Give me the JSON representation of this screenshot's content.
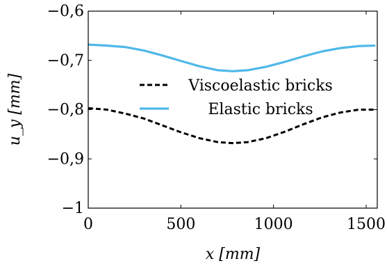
{
  "chart_data": {
    "type": "line",
    "title": "",
    "xlabel": "x [mm]",
    "ylabel": "u_y [mm]",
    "xlim": [
      0,
      1560
    ],
    "ylim": [
      -1,
      -0.6
    ],
    "xticks": [
      0,
      500,
      1000,
      1500
    ],
    "xtick_labels": [
      "0",
      "500",
      "1000",
      "1500"
    ],
    "yticks": [
      -1,
      -0.9,
      -0.8,
      -0.7,
      -0.6
    ],
    "ytick_labels": [
      "−1",
      "−0,9",
      "−0,8",
      "−0,7",
      "−0,6"
    ],
    "grid": false,
    "legend_position": "center",
    "series": [
      {
        "name": "Viscoelastic bricks",
        "color": "#000000",
        "style": "dashed",
        "x": [
          0,
          100,
          200,
          300,
          400,
          500,
          600,
          700,
          780,
          860,
          960,
          1060,
          1160,
          1260,
          1360,
          1460,
          1550
        ],
        "y": [
          -0.797,
          -0.8,
          -0.808,
          -0.818,
          -0.832,
          -0.846,
          -0.858,
          -0.866,
          -0.868,
          -0.866,
          -0.858,
          -0.845,
          -0.83,
          -0.816,
          -0.806,
          -0.8,
          -0.8
        ]
      },
      {
        "name": "Elastic bricks",
        "color": "#4fb8e8",
        "style": "solid",
        "x": [
          0,
          100,
          200,
          300,
          400,
          500,
          600,
          700,
          780,
          860,
          960,
          1060,
          1160,
          1260,
          1360,
          1460,
          1550
        ],
        "y": [
          -0.668,
          -0.67,
          -0.673,
          -0.68,
          -0.69,
          -0.701,
          -0.712,
          -0.72,
          -0.722,
          -0.72,
          -0.713,
          -0.703,
          -0.692,
          -0.682,
          -0.675,
          -0.671,
          -0.67
        ]
      }
    ]
  }
}
